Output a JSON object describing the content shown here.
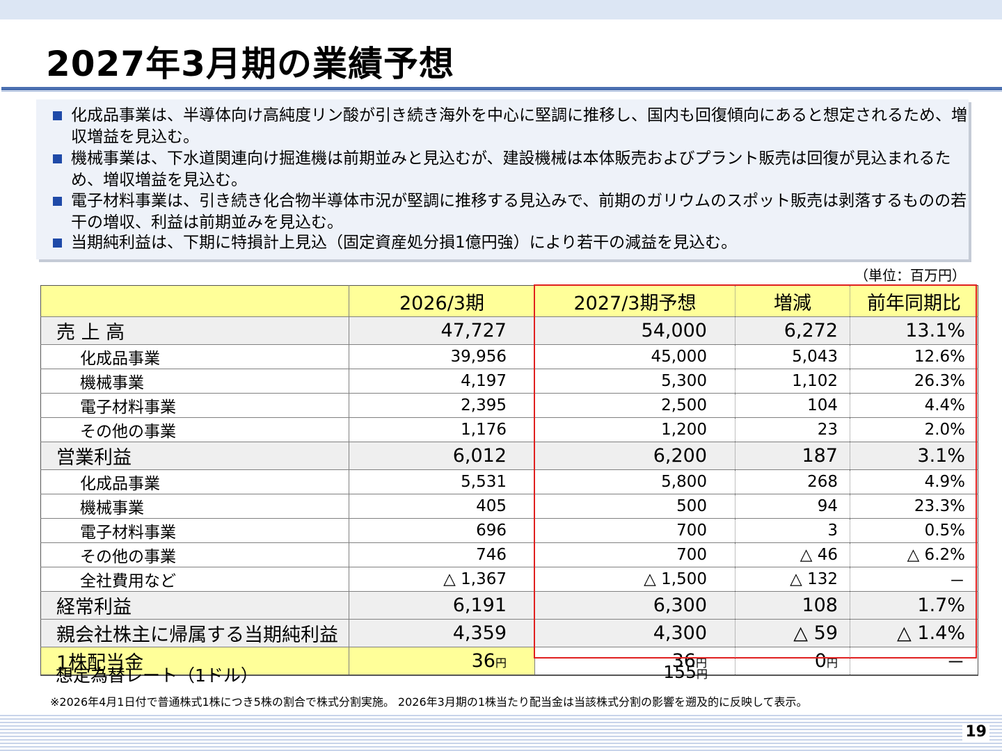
{
  "title": "2027年3月期の業績予想",
  "bullets": [
    "化成品事業は、半導体向け高純度リン酸が引き続き海外を中心に堅調に推移し、国内も回復傾向にあると想定されるため、増収増益を見込む。",
    "機械事業は、下水道関連向け掘進機は前期並みと見込むが、建設機械は本体販売およびプラント販売は回復が見込まれるため、増収増益を見込む。",
    "電子材料事業は、引き続き化合物半導体市況が堅調に推移する見込みで、前期のガリウムのスポット販売は剥落するものの若干の増収、利益は前期並みを見込む。",
    "当期純利益は、下期に特損計上見込（固定資産処分損1億円強）により若干の減益を見込む。"
  ],
  "unit": "（単位：百万円）",
  "table": {
    "headers": [
      "",
      "2026/3期",
      "2027/3期予想",
      "増減",
      "前年同期比"
    ],
    "rows": [
      [
        "売 上 高",
        "47,727",
        "54,000",
        "6,272",
        "13.1%"
      ],
      [
        "化成品事業",
        "39,956",
        "45,000",
        "5,043",
        "12.6%"
      ],
      [
        "機械事業",
        "4,197",
        "5,300",
        "1,102",
        "26.3%"
      ],
      [
        "電子材料事業",
        "2,395",
        "2,500",
        "104",
        "4.4%"
      ],
      [
        "その他の事業",
        "1,176",
        "1,200",
        "23",
        "2.0%"
      ],
      [
        "営業利益",
        "6,012",
        "6,200",
        "187",
        "3.1%"
      ],
      [
        "化成品事業",
        "5,531",
        "5,800",
        "268",
        "4.9%"
      ],
      [
        "機械事業",
        "405",
        "500",
        "94",
        "23.3%"
      ],
      [
        "電子材料事業",
        "696",
        "700",
        "3",
        "0.5%"
      ],
      [
        "その他の事業",
        "746",
        "700",
        "△ 46",
        "△ 6.2%"
      ],
      [
        "全社費用など",
        "△ 1,367",
        "△ 1,500",
        "△ 132",
        "－"
      ],
      [
        "経常利益",
        "6,191",
        "6,300",
        "108",
        "1.7%"
      ],
      [
        "親会社株主に帰属する当期純利益",
        "4,359",
        "4,300",
        "△ 59",
        "△ 1.4%"
      ]
    ],
    "dividend": {
      "label": "1株配当金",
      "v1": "36",
      "v2": "36",
      "v3": "0",
      "v4": "－",
      "unit": "円"
    }
  },
  "rate": {
    "label": "想定為替レート（1ドル）",
    "value": "155",
    "unit": "円"
  },
  "footnote": "※2026年4月1日付で普通株式1株につき5株の割合で株式分割実施。 2026年3月期の1株当たり配当金は当該株式分割の影響を遡及的に反映して表示。",
  "page_number": "19",
  "colors": {
    "accent_blue": "#1f4aa8",
    "header_yellow": "#ffff99",
    "highlight_red": "#e0201f"
  }
}
